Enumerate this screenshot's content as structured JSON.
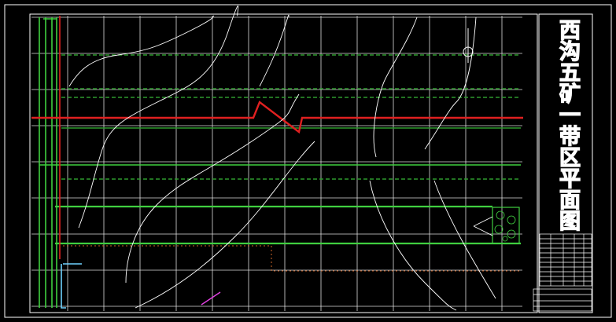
{
  "title": "西沟五矿一带区平面图"
}
